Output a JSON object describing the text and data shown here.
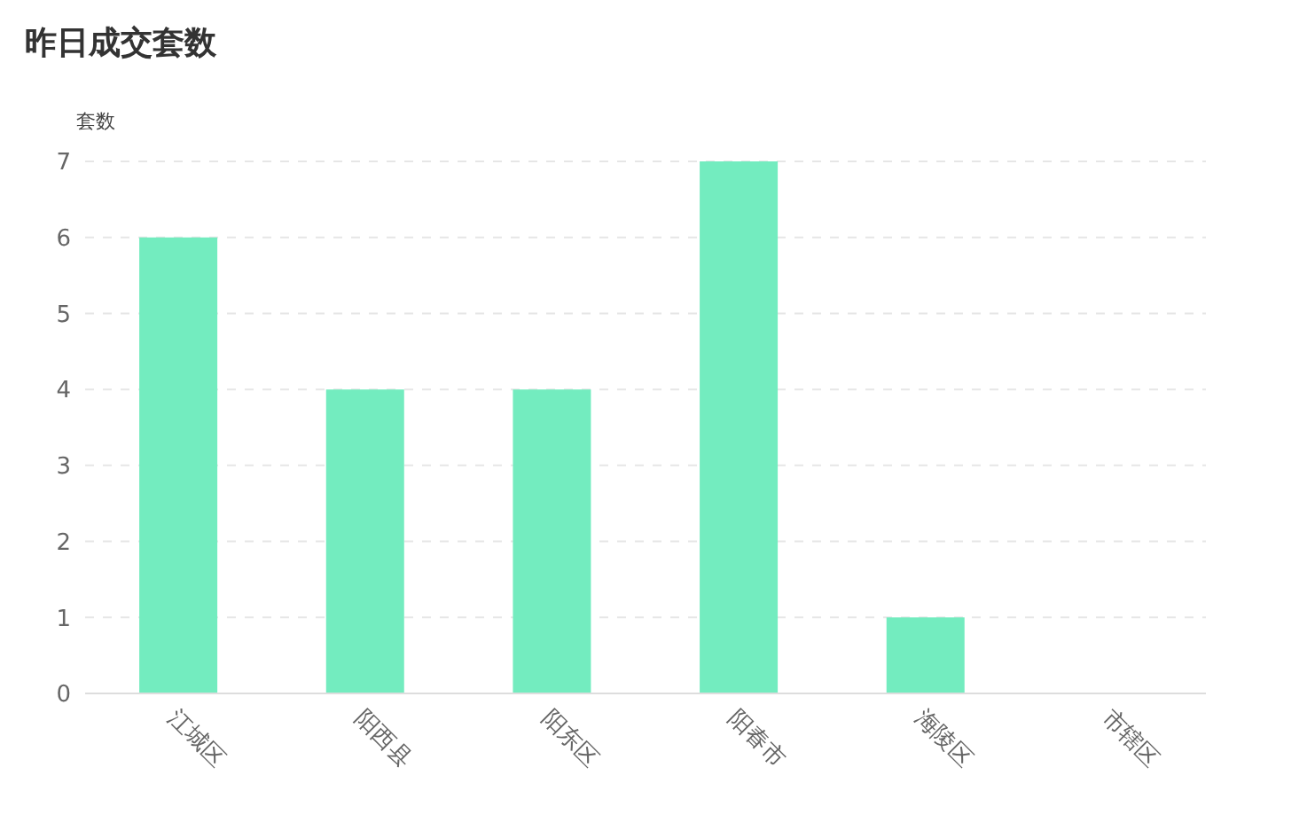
{
  "chart_data": {
    "type": "bar",
    "title": "昨日成交套数",
    "ylabel": "套数",
    "categories": [
      "江城区",
      "阳西县",
      "阳东区",
      "阳春市",
      "海陵区",
      "市辖区"
    ],
    "values": [
      6,
      4,
      4,
      7,
      1,
      0
    ],
    "color": "#73ecbf",
    "ylim": [
      0,
      7
    ],
    "yticks": [
      0,
      1,
      2,
      3,
      4,
      5,
      6,
      7
    ],
    "grid": "y"
  }
}
